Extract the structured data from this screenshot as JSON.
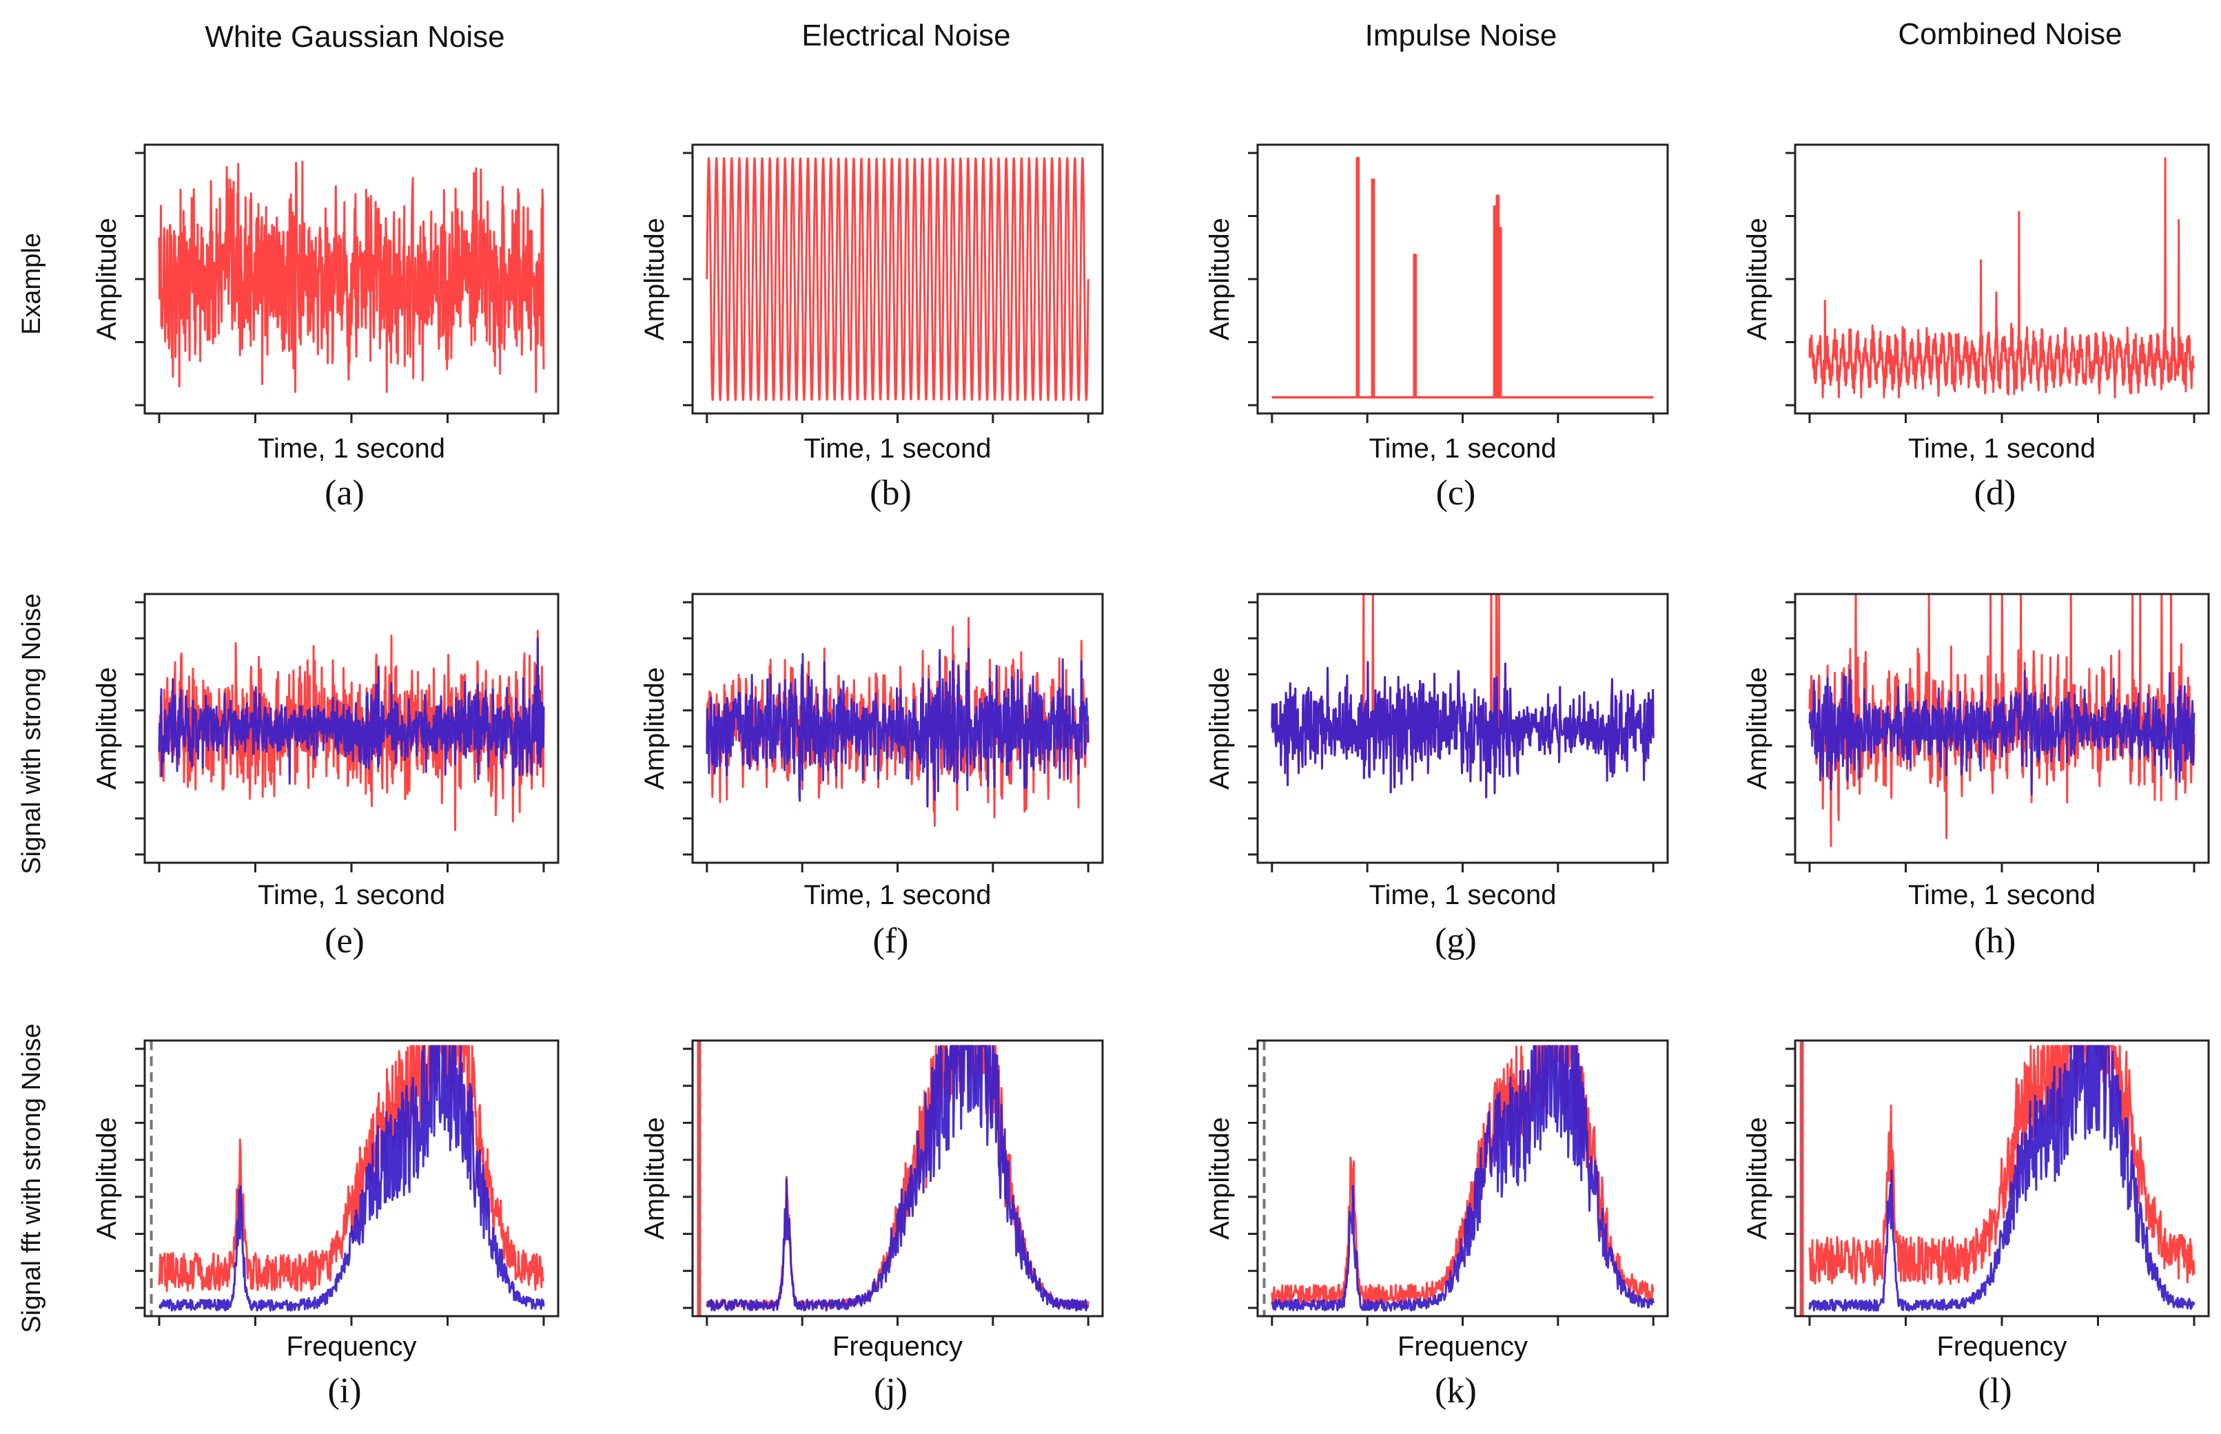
{
  "columns": [
    "White Gaussian Noise",
    "Electrical Noise",
    "Impulse Noise",
    "Combined Noise"
  ],
  "rows": [
    "Example",
    "Signal with strong Noise",
    "Signal fft with strong Noise"
  ],
  "colors": {
    "noisy": "#ff4444",
    "clean": "#3d22c8",
    "clean_edge": "#4444ff",
    "marker": "#777777"
  },
  "chart_data": [
    {
      "id": "a",
      "type": "line",
      "letter": "(a)",
      "row": "Example",
      "column": "White Gaussian Noise",
      "xlabel": "Time, 1 second",
      "ylabel": "Amplitude",
      "kind": "gaussian",
      "series": [
        {
          "color": "#ff4444",
          "depicts": "noise"
        }
      ]
    },
    {
      "id": "b",
      "type": "line",
      "letter": "(b)",
      "row": "Example",
      "column": "Electrical Noise",
      "xlabel": "Time, 1 second",
      "ylabel": "Amplitude",
      "kind": "electrical",
      "cycles": 50,
      "series": [
        {
          "color": "#ff4444",
          "depicts": "noise"
        }
      ]
    },
    {
      "id": "c",
      "type": "line",
      "letter": "(c)",
      "row": "Example",
      "column": "Impulse Noise",
      "xlabel": "Time, 1 second",
      "ylabel": "Amplitude",
      "kind": "impulse",
      "impulses": [
        [
          0.225,
          0.95
        ],
        [
          0.265,
          0.87
        ],
        [
          0.375,
          0.59
        ],
        [
          0.585,
          0.77
        ],
        [
          0.592,
          0.81
        ],
        [
          0.598,
          0.69
        ]
      ],
      "series": [
        {
          "color": "#ff4444",
          "depicts": "noise"
        }
      ]
    },
    {
      "id": "d",
      "type": "line",
      "letter": "(d)",
      "row": "Example",
      "column": "Combined Noise",
      "xlabel": "Time, 1 second",
      "ylabel": "Amplitude",
      "kind": "combined",
      "impulses": [
        [
          0.04,
          0.42
        ],
        [
          0.445,
          0.57
        ],
        [
          0.485,
          0.45
        ],
        [
          0.545,
          0.75
        ],
        [
          0.925,
          0.95
        ],
        [
          0.96,
          0.72
        ]
      ],
      "series": [
        {
          "color": "#ff4444",
          "depicts": "noise"
        }
      ]
    },
    {
      "id": "e",
      "type": "line",
      "letter": "(e)",
      "row": "Signal with strong Noise",
      "column": "White Gaussian Noise",
      "xlabel": "Time, 1 second",
      "ylabel": "Amplitude",
      "kind": "noisy",
      "noise": "gaussian",
      "series": [
        {
          "color": "#ff4444",
          "depicts": "noisy signal"
        },
        {
          "color": "#3d22c8",
          "depicts": "signal"
        }
      ]
    },
    {
      "id": "f",
      "type": "line",
      "letter": "(f)",
      "row": "Signal with strong Noise",
      "column": "Electrical Noise",
      "xlabel": "Time, 1 second",
      "ylabel": "Amplitude",
      "kind": "noisy",
      "noise": "electrical",
      "series": [
        {
          "color": "#ff4444",
          "depicts": "noisy signal"
        },
        {
          "color": "#3d22c8",
          "depicts": "signal"
        }
      ]
    },
    {
      "id": "g",
      "type": "line",
      "letter": "(g)",
      "row": "Signal with strong Noise",
      "column": "Impulse Noise",
      "xlabel": "Time, 1 second",
      "ylabel": "Amplitude",
      "kind": "noisy",
      "noise": "impulse",
      "impulses": [
        0.24,
        0.265,
        0.575,
        0.588,
        0.595
      ],
      "series": [
        {
          "color": "#ff4444",
          "depicts": "noisy signal"
        },
        {
          "color": "#3d22c8",
          "depicts": "signal"
        }
      ]
    },
    {
      "id": "h",
      "type": "line",
      "letter": "(h)",
      "row": "Signal with strong Noise",
      "column": "Combined Noise",
      "xlabel": "Time, 1 second",
      "ylabel": "Amplitude",
      "kind": "noisy",
      "noise": "combined",
      "impulses": [
        0.12,
        0.31,
        0.47,
        0.5,
        0.55,
        0.68,
        0.84,
        0.86,
        0.915,
        0.94
      ],
      "series": [
        {
          "color": "#ff4444",
          "depicts": "noisy signal"
        },
        {
          "color": "#3d22c8",
          "depicts": "signal"
        }
      ]
    },
    {
      "id": "i",
      "type": "line",
      "letter": "(i)",
      "row": "Signal fft with strong Noise",
      "column": "White Gaussian Noise",
      "xlabel": "Frequency",
      "ylabel": "Amplitude",
      "kind": "fft",
      "noise": "gaussian",
      "marker_x": 0.02,
      "marker_solid": false,
      "peaks": [
        [
          0.21,
          0.41
        ],
        [
          0.58,
          0.47
        ],
        [
          0.72,
          0.59
        ],
        [
          0.79,
          0.46
        ]
      ],
      "floor": 0.2,
      "series": [
        {
          "color": "#ff4444",
          "depicts": "noisy spectrum"
        },
        {
          "color": "#3d22c8",
          "depicts": "signal spectrum"
        }
      ]
    },
    {
      "id": "j",
      "type": "line",
      "letter": "(j)",
      "row": "Signal fft with strong Noise",
      "column": "Electrical Noise",
      "xlabel": "Frequency",
      "ylabel": "Amplitude",
      "kind": "fft",
      "noise": "electrical",
      "marker_x": 0.02,
      "marker_solid": true,
      "peaks": [
        [
          0.21,
          0.41
        ],
        [
          0.56,
          0.43
        ],
        [
          0.72,
          0.65
        ],
        [
          0.67,
          0.5
        ]
      ],
      "floor": 0.05,
      "series": [
        {
          "color": "#ff4444",
          "depicts": "noisy spectrum"
        },
        {
          "color": "#3d22c8",
          "depicts": "signal spectrum"
        }
      ]
    },
    {
      "id": "k",
      "type": "line",
      "letter": "(k)",
      "row": "Signal fft with strong Noise",
      "column": "Impulse Noise",
      "xlabel": "Frequency",
      "ylabel": "Amplitude",
      "kind": "fft",
      "noise": "impulse",
      "marker_x": 0.02,
      "marker_solid": false,
      "peaks": [
        [
          0.21,
          0.47
        ],
        [
          0.59,
          0.55
        ],
        [
          0.73,
          0.64
        ],
        [
          0.8,
          0.42
        ]
      ],
      "floor": 0.1,
      "series": [
        {
          "color": "#ff4444",
          "depicts": "noisy spectrum"
        },
        {
          "color": "#3d22c8",
          "depicts": "signal spectrum"
        }
      ]
    },
    {
      "id": "l",
      "type": "line",
      "letter": "(l)",
      "row": "Signal fft with strong Noise",
      "column": "Combined Noise",
      "xlabel": "Frequency",
      "ylabel": "Amplitude",
      "kind": "fft",
      "noise": "combined",
      "marker_x": 0.02,
      "marker_solid": true,
      "peaks": [
        [
          0.21,
          0.51
        ],
        [
          0.58,
          0.55
        ],
        [
          0.72,
          0.67
        ],
        [
          0.79,
          0.45
        ]
      ],
      "floor": 0.25,
      "series": [
        {
          "color": "#ff4444",
          "depicts": "noisy spectrum"
        },
        {
          "color": "#3d22c8",
          "depicts": "signal spectrum"
        }
      ]
    }
  ]
}
